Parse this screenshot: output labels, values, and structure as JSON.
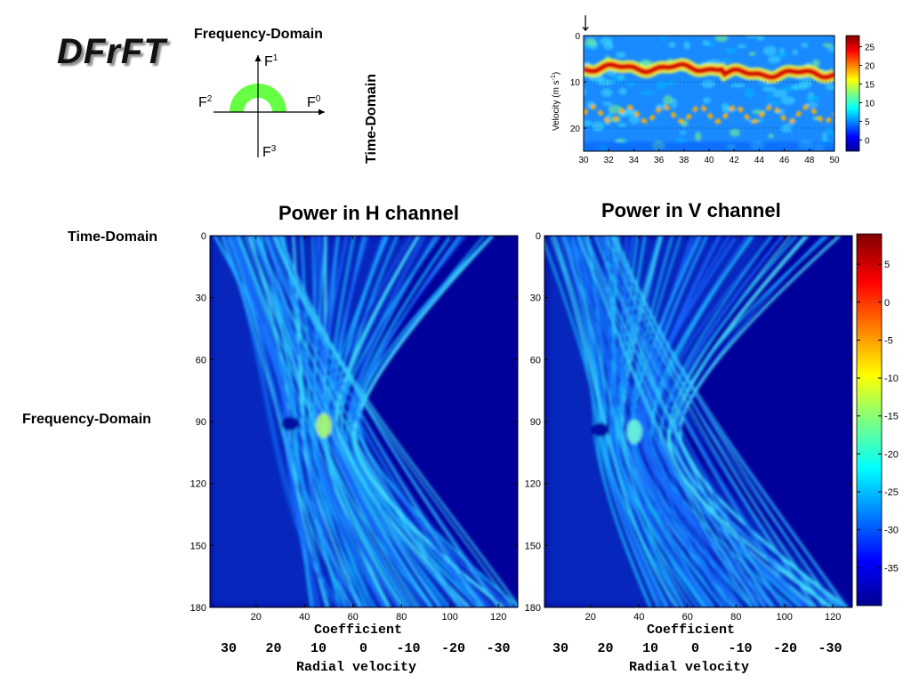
{
  "logo": "DFrFT",
  "diagram": {
    "title": "Frequency-Domain",
    "side_label": "Time-Domain",
    "f0": "F",
    "f0_sup": "0",
    "f1": "F",
    "f1_sup": "1",
    "f2": "F",
    "f2_sup": "2",
    "f3": "F",
    "f3_sup": "3",
    "arc_color": "#66ff44"
  },
  "left_labels": {
    "time_domain": "Time-Domain",
    "frequency_domain": "Frequency-Domain"
  },
  "chart_data": [
    {
      "id": "spectrogram",
      "type": "heatmap",
      "title": "",
      "xlabel": "",
      "ylabel": "Velocity (m s-1)",
      "ylabel_parts": [
        "Velocity (m s",
        "-1",
        ")"
      ],
      "x_ticks": [
        "30",
        "32",
        "34",
        "36",
        "38",
        "40",
        "42",
        "44",
        "46",
        "48",
        "50"
      ],
      "xlim": [
        30,
        50
      ],
      "y_ticks": [
        "0",
        "10",
        "20"
      ],
      "ylim": [
        0,
        25
      ],
      "colorbar_ticks": [
        "25",
        "20",
        "15",
        "10",
        "5",
        "0"
      ],
      "colorbar_range": [
        -3,
        28
      ],
      "marker_x": 30.5,
      "peak_velocity": 7,
      "secondary_velocity": 17
    },
    {
      "id": "h-channel",
      "type": "heatmap",
      "title": "Power in H channel",
      "xlabel": "Coefficient",
      "x_ticks": [
        "20",
        "40",
        "60",
        "80",
        "100",
        "120"
      ],
      "xlim": [
        1,
        128
      ],
      "y_ticks": [
        "0",
        "30",
        "60",
        "90",
        "120",
        "150",
        "180"
      ],
      "ylim": [
        0,
        180
      ],
      "secondary_axis_ticks": [
        "30",
        "20",
        "10",
        "0",
        "-10",
        "-20",
        "-30"
      ],
      "secondary_axis_label": "Radial velocity"
    },
    {
      "id": "v-channel",
      "type": "heatmap",
      "title": "Power in V channel",
      "xlabel": "Coefficient",
      "x_ticks": [
        "20",
        "40",
        "60",
        "80",
        "100",
        "120"
      ],
      "xlim": [
        1,
        128
      ],
      "y_ticks": [
        "0",
        "30",
        "60",
        "90",
        "120",
        "150",
        "180"
      ],
      "ylim": [
        0,
        180
      ],
      "secondary_axis_ticks": [
        "30",
        "20",
        "10",
        "0",
        "-10",
        "-20",
        "-30"
      ],
      "secondary_axis_label": "Radial velocity",
      "colorbar_ticks": [
        "5",
        "0",
        "-5",
        "-10",
        "-15",
        "-20",
        "-25",
        "-30",
        "-35"
      ],
      "colorbar_range": [
        -40,
        9
      ]
    }
  ]
}
